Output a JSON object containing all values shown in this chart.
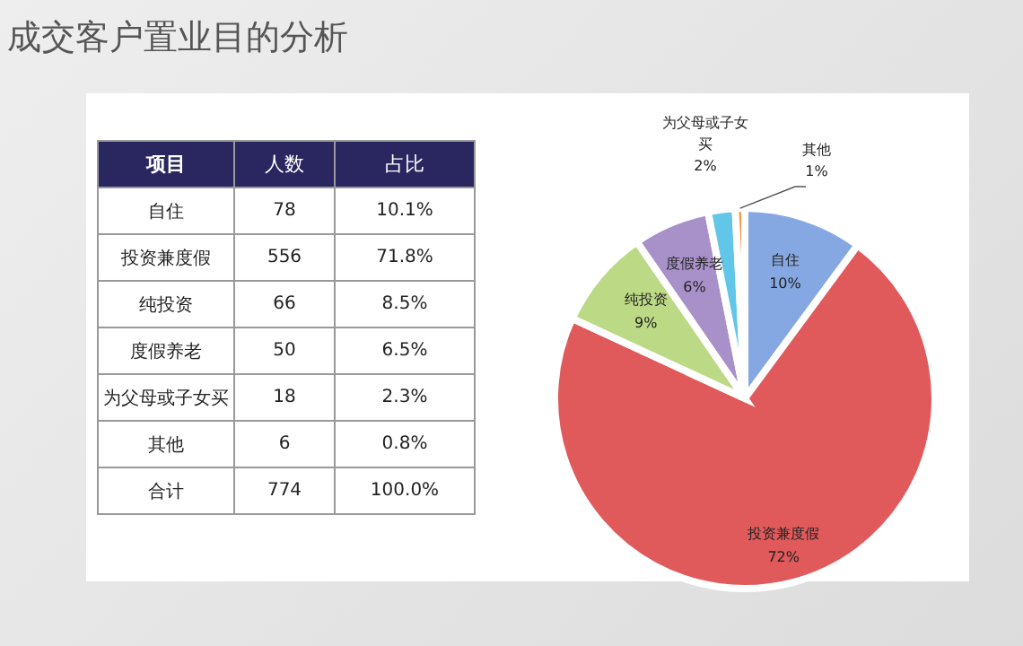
{
  "chart_data": [
    {
      "type": "other",
      "title": "成交客户置业目的分析",
      "xlabel": "项目",
      "data_labels": true,
      "categories": [
        "自住",
        "投资兼度假",
        "纯投资",
        "度假养老",
        "为父母或子女买",
        "其他",
        "合计"
      ],
      "series": [
        {
          "name": "人数",
          "values": [
            78,
            556,
            66,
            50,
            18,
            6,
            774
          ]
        },
        {
          "name": "占比",
          "values": [
            10.1,
            71.8,
            8.5,
            6.5,
            2.3,
            0.8,
            100.0
          ],
          "value_labels": [
            "10.1%",
            "71.8%",
            "8.5%",
            "6.5%",
            "2.3%",
            "0.8%",
            "100.0%"
          ]
        }
      ]
    },
    {
      "type": "pie",
      "categories": [
        "自住",
        "投资兼度假",
        "纯投资",
        "度假养老",
        "为父母或子女买",
        "其他"
      ],
      "values": [
        10.1,
        71.8,
        8.5,
        6.5,
        2.3,
        0.8
      ],
      "value_labels": [
        "10%",
        "72%",
        "9%",
        "6%",
        "2%",
        "1%"
      ],
      "colors": [
        "#86a8e2",
        "#e05a5c",
        "#bcd985",
        "#a890c8",
        "#62c6e8",
        "#f79646"
      ]
    }
  ]
}
